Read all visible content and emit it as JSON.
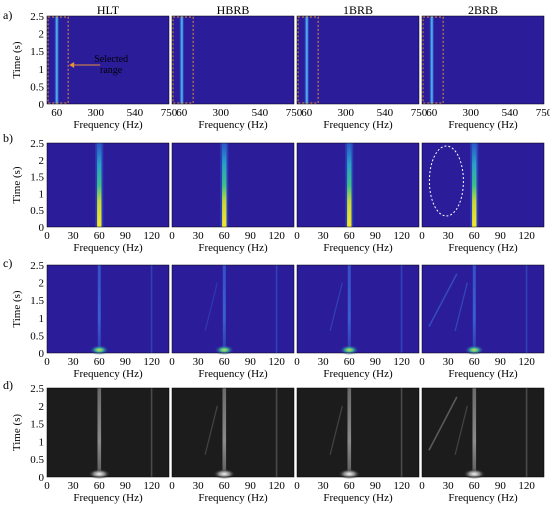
{
  "conditions": [
    "HLT",
    "HBRB",
    "1BRB",
    "2BRB"
  ],
  "row_labels": [
    "a)",
    "b)",
    "c)",
    "d)"
  ],
  "y_axis": {
    "label": "Time (s)",
    "ticks": [
      "0",
      "0.5",
      "1",
      "1.5",
      "2",
      "2.5"
    ],
    "ticks_row_c": [
      "0",
      "0.5",
      "1",
      "1.5",
      "2",
      "2.5"
    ],
    "ticks_row_d": [
      "0",
      "0.5",
      "1",
      "1.5",
      "2",
      "2.5"
    ]
  },
  "x_axis": {
    "label": "Frequency (Hz)",
    "ticks_row_a": [
      "60",
      "300",
      "540",
      "750"
    ],
    "ticks_row_a_last": "750",
    "ticks_zoom": [
      "0",
      "30",
      "60",
      "90",
      "120"
    ]
  },
  "annotation": {
    "text_line1": "Selected",
    "text_line2": "range"
  },
  "colors": {
    "colormap_background": "#2b1c9a",
    "line_60hz_peak": "#f6e62b",
    "line_60hz_mid": "#26b89a",
    "selected_range_box": "#e8903a",
    "ellipse": "#ffffff",
    "grayscale_background": "#1c1c1c"
  },
  "chart_data": {
    "type": "heatmap",
    "description_of_axes": "time vs frequency spectrograms",
    "rows": [
      {
        "row": "a",
        "xlim": [
          0,
          750
        ],
        "ylim": [
          0,
          2.5
        ],
        "dominant_frequency_hz": 60
      },
      {
        "row": "b",
        "xlim": [
          0,
          140
        ],
        "ylim": [
          0,
          2.5
        ],
        "dominant_frequency_hz": 60
      },
      {
        "row": "c",
        "xlim": [
          0,
          140
        ],
        "ylim": [
          0,
          2.5
        ],
        "dominant_frequency_hz": 60
      },
      {
        "row": "d",
        "xlim": [
          0,
          140
        ],
        "ylim": [
          0,
          2.5
        ],
        "dominant_frequency_hz": 60,
        "colormap": "gray"
      }
    ]
  }
}
